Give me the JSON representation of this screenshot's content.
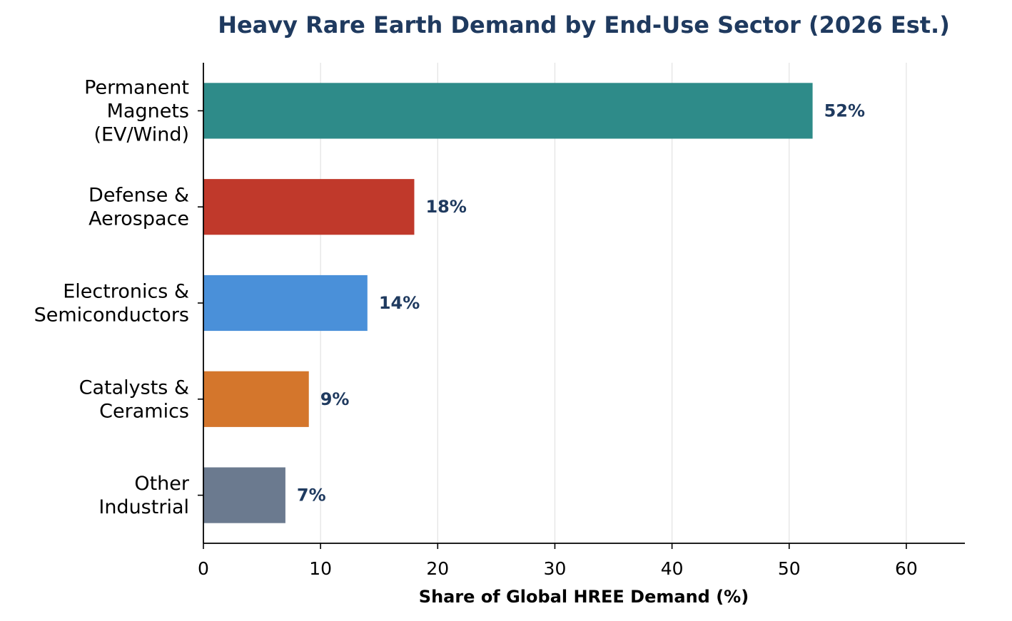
{
  "chart_data": {
    "type": "bar",
    "orientation": "horizontal",
    "title": "Heavy Rare Earth Demand by End-Use Sector (2026 Est.)",
    "xlabel": "Share of Global HREE Demand (%)",
    "ylabel": "",
    "xlim": [
      0,
      65
    ],
    "xticks": [
      "0",
      "10",
      "20",
      "30",
      "40",
      "50",
      "60"
    ],
    "xtick_values": [
      0,
      10,
      20,
      30,
      40,
      50,
      60
    ],
    "grid": "vertical",
    "categories": [
      [
        "Permanent",
        "Magnets",
        "(EV/Wind)"
      ],
      [
        "Defense &",
        "Aerospace"
      ],
      [
        "Electronics &",
        "Semiconductors"
      ],
      [
        "Catalysts &",
        "Ceramics"
      ],
      [
        "Other",
        "Industrial"
      ]
    ],
    "values": [
      52,
      18,
      14,
      9,
      7
    ],
    "data_labels": [
      "52%",
      "18%",
      "14%",
      "9%",
      "7%"
    ],
    "colors": [
      "#2e8b89",
      "#c0392b",
      "#4a90d9",
      "#d4762c",
      "#6b7a8f"
    ],
    "title_color": "#1f3a5f",
    "label_color": "#1f3a5f"
  }
}
